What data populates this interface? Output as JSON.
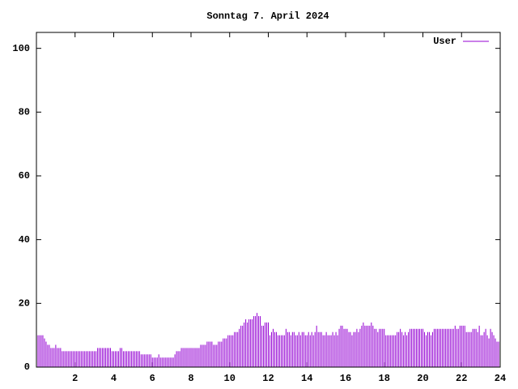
{
  "chart_data": {
    "type": "impulse",
    "title": "Sonntag 7. April 2024",
    "xlim": [
      0,
      24
    ],
    "xticks": [
      2,
      4,
      6,
      8,
      10,
      12,
      14,
      16,
      18,
      20,
      22,
      24
    ],
    "ylim": [
      0,
      105
    ],
    "yticks": [
      0,
      20,
      40,
      60,
      80,
      100
    ],
    "legend": "upper right",
    "x": [
      0,
      0.083,
      0.167,
      0.25,
      0.333,
      0.417,
      0.5,
      0.583,
      0.667,
      0.75,
      0.833,
      0.917,
      1,
      1.083,
      1.167,
      1.25,
      1.333,
      1.417,
      1.5,
      1.583,
      1.667,
      1.75,
      1.833,
      1.917,
      2,
      2.083,
      2.167,
      2.25,
      2.333,
      2.417,
      2.5,
      2.583,
      2.667,
      2.75,
      2.833,
      2.917,
      3,
      3.083,
      3.167,
      3.25,
      3.333,
      3.417,
      3.5,
      3.583,
      3.667,
      3.75,
      3.833,
      3.917,
      4,
      4.083,
      4.167,
      4.25,
      4.333,
      4.417,
      4.5,
      4.583,
      4.667,
      4.75,
      4.833,
      4.917,
      5,
      5.083,
      5.167,
      5.25,
      5.333,
      5.417,
      5.5,
      5.583,
      5.667,
      5.75,
      5.833,
      5.917,
      6,
      6.083,
      6.167,
      6.25,
      6.333,
      6.417,
      6.5,
      6.583,
      6.667,
      6.75,
      6.833,
      6.917,
      7,
      7.083,
      7.167,
      7.25,
      7.333,
      7.417,
      7.5,
      7.583,
      7.667,
      7.75,
      7.833,
      7.917,
      8,
      8.083,
      8.167,
      8.25,
      8.333,
      8.417,
      8.5,
      8.583,
      8.667,
      8.75,
      8.833,
      8.917,
      9,
      9.083,
      9.167,
      9.25,
      9.333,
      9.417,
      9.5,
      9.583,
      9.667,
      9.75,
      9.833,
      9.917,
      10,
      10.083,
      10.167,
      10.25,
      10.333,
      10.417,
      10.5,
      10.583,
      10.667,
      10.75,
      10.833,
      10.917,
      11,
      11.083,
      11.167,
      11.25,
      11.333,
      11.417,
      11.5,
      11.583,
      11.667,
      11.75,
      11.833,
      11.917,
      12,
      12.083,
      12.167,
      12.25,
      12.333,
      12.417,
      12.5,
      12.583,
      12.667,
      12.75,
      12.833,
      12.917,
      13,
      13.083,
      13.167,
      13.25,
      13.333,
      13.417,
      13.5,
      13.583,
      13.667,
      13.75,
      13.833,
      13.917,
      14,
      14.083,
      14.167,
      14.25,
      14.333,
      14.417,
      14.5,
      14.583,
      14.667,
      14.75,
      14.833,
      14.917,
      15,
      15.083,
      15.167,
      15.25,
      15.333,
      15.417,
      15.5,
      15.583,
      15.667,
      15.75,
      15.833,
      15.917,
      16,
      16.083,
      16.167,
      16.25,
      16.333,
      16.417,
      16.5,
      16.583,
      16.667,
      16.75,
      16.833,
      16.917,
      17,
      17.083,
      17.167,
      17.25,
      17.333,
      17.417,
      17.5,
      17.583,
      17.667,
      17.75,
      17.833,
      17.917,
      18,
      18.083,
      18.167,
      18.25,
      18.333,
      18.417,
      18.5,
      18.583,
      18.667,
      18.75,
      18.833,
      18.917,
      19,
      19.083,
      19.167,
      19.25,
      19.333,
      19.417,
      19.5,
      19.583,
      19.667,
      19.75,
      19.833,
      19.917,
      20,
      20.083,
      20.167,
      20.25,
      20.333,
      20.417,
      20.5,
      20.583,
      20.667,
      20.75,
      20.833,
      20.917,
      21,
      21.083,
      21.167,
      21.25,
      21.333,
      21.417,
      21.5,
      21.583,
      21.667,
      21.75,
      21.833,
      21.917,
      22,
      22.083,
      22.167,
      22.25,
      22.333,
      22.417,
      22.5,
      22.583,
      22.667,
      22.75,
      22.833,
      22.917,
      23,
      23.083,
      23.167,
      23.25,
      23.333,
      23.417,
      23.5,
      23.583,
      23.667,
      23.75,
      23.833,
      23.917
    ],
    "series": [
      {
        "name": "User",
        "color": "#9400d3",
        "values": [
          10,
          10,
          10,
          10,
          10,
          9,
          8,
          7,
          7,
          6,
          6,
          6,
          7,
          6,
          6,
          6,
          5,
          5,
          5,
          5,
          5,
          5,
          5,
          5,
          5,
          5,
          5,
          5,
          5,
          5,
          5,
          5,
          5,
          5,
          5,
          5,
          5,
          5,
          6,
          6,
          6,
          6,
          6,
          6,
          6,
          6,
          6,
          5,
          5,
          5,
          5,
          5,
          6,
          6,
          5,
          5,
          5,
          5,
          5,
          5,
          5,
          5,
          5,
          5,
          5,
          4,
          4,
          4,
          4,
          4,
          4,
          4,
          3,
          3,
          3,
          3,
          4,
          3,
          3,
          3,
          3,
          3,
          3,
          3,
          3,
          3,
          4,
          5,
          5,
          5,
          6,
          6,
          6,
          6,
          6,
          6,
          6,
          6,
          6,
          6,
          6,
          6,
          7,
          7,
          7,
          7,
          8,
          8,
          8,
          8,
          7,
          7,
          7,
          8,
          8,
          8,
          9,
          9,
          9,
          10,
          10,
          10,
          10,
          11,
          11,
          11,
          12,
          13,
          13,
          14,
          15,
          14,
          15,
          15,
          15,
          16,
          16,
          17,
          16,
          16,
          13,
          13,
          14,
          14,
          14,
          10,
          11,
          12,
          11,
          11,
          10,
          10,
          10,
          10,
          10,
          12,
          11,
          11,
          10,
          11,
          11,
          10,
          10,
          11,
          10,
          11,
          11,
          10,
          10,
          11,
          10,
          11,
          10,
          11,
          13,
          11,
          11,
          11,
          10,
          10,
          11,
          10,
          10,
          10,
          11,
          10,
          11,
          10,
          12,
          13,
          13,
          12,
          12,
          12,
          11,
          11,
          10,
          11,
          11,
          12,
          11,
          12,
          13,
          14,
          13,
          13,
          13,
          13,
          14,
          13,
          12,
          12,
          11,
          12,
          12,
          12,
          12,
          10,
          10,
          10,
          10,
          10,
          10,
          10,
          11,
          11,
          12,
          11,
          10,
          11,
          10,
          11,
          12,
          12,
          12,
          12,
          12,
          12,
          12,
          12,
          12,
          11,
          10,
          11,
          11,
          10,
          11,
          12,
          12,
          12,
          12,
          12,
          12,
          12,
          12,
          12,
          12,
          12,
          12,
          12,
          13,
          12,
          12,
          13,
          13,
          13,
          13,
          11,
          11,
          11,
          11,
          12,
          12,
          12,
          11,
          13,
          10,
          10,
          11,
          12,
          10,
          9,
          12,
          11,
          10,
          9,
          8,
          8
        ]
      }
    ]
  }
}
